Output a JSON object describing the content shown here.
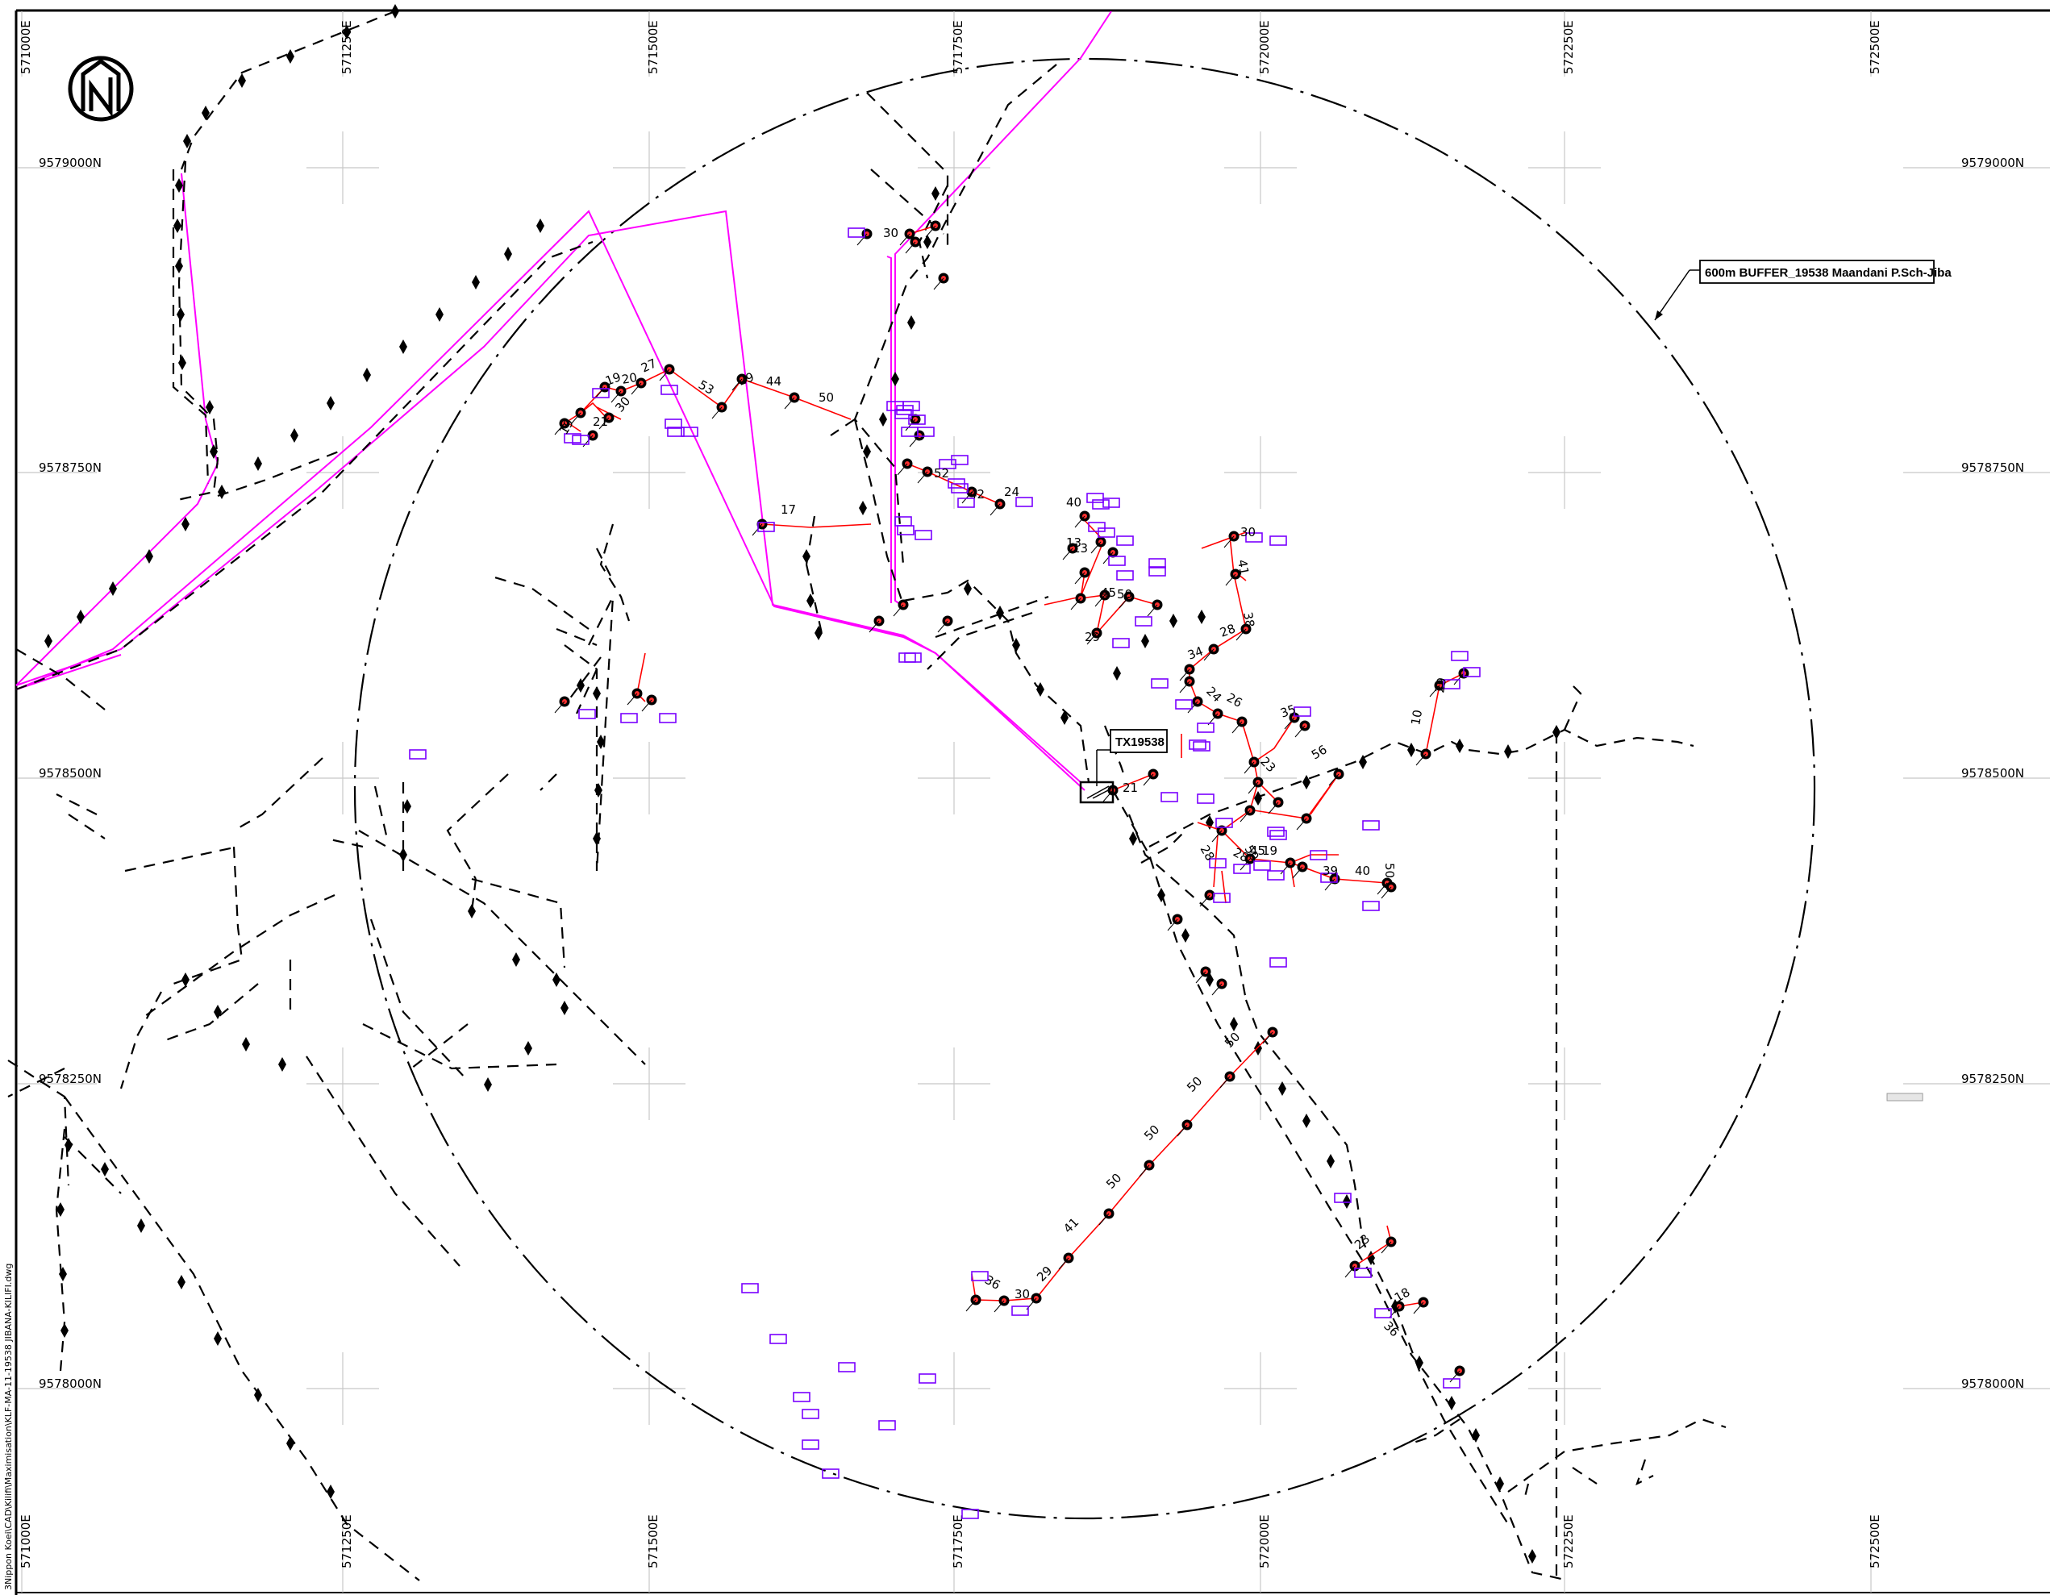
{
  "map": {
    "buffer_label": "600m BUFFER_19538 Maandani P.Sch-Jiba",
    "transformer_label": "TX19538",
    "file_path": "3Nippon Koei\\CAD\\Kilifi\\Maximisation\\KLF-MA-11-19538 JIBANA-KILIFI.dwg",
    "north_arrow": "north-arrow-icon",
    "eastings": [
      "571000E",
      "571250E",
      "571500E",
      "571750E",
      "572000E",
      "572250E",
      "572500E"
    ],
    "northings": [
      "9579000N",
      "9578750N",
      "9578500N",
      "9578250N",
      "9578000N"
    ],
    "span_labels": [
      "30",
      "19",
      "20",
      "27",
      "53",
      "29",
      "44",
      "50",
      "21",
      "30",
      "19",
      "52",
      "42",
      "24",
      "17",
      "40",
      "13",
      "13",
      "45",
      "50",
      "29",
      "30",
      "41",
      "38",
      "28",
      "34",
      "24",
      "26",
      "35",
      "23",
      "56",
      "10",
      "29",
      "50",
      "45",
      "21",
      "28",
      "28",
      "19",
      "39",
      "40",
      "50",
      "50",
      "50",
      "50",
      "50",
      "41",
      "29",
      "30",
      "36",
      "23",
      "18",
      "36"
    ],
    "colors": {
      "mv_line": "#ff00ff",
      "lv_line": "#ff0000",
      "meter_box": "#7a00ff",
      "existing_line": "#000000"
    }
  }
}
